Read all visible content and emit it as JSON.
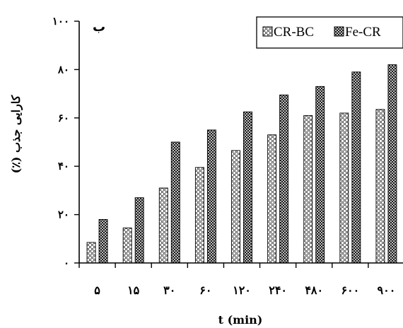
{
  "chart_data": {
    "type": "bar",
    "panel_label": "ب",
    "categories": [
      "۵",
      "۱۵",
      "۳۰",
      "۶۰",
      "۱۲۰",
      "۲۴۰",
      "۴۸۰",
      "۶۰۰",
      "۹۰۰"
    ],
    "series": [
      {
        "name": "CR-BC",
        "values": [
          8.5,
          14.5,
          31,
          39.5,
          46.5,
          53,
          61,
          62,
          63.5
        ],
        "pattern": "checker-light"
      },
      {
        "name": "Fe-CR",
        "values": [
          18,
          27,
          50,
          55,
          62.5,
          69.5,
          73,
          79,
          82
        ],
        "pattern": "checker-dark"
      }
    ],
    "xlabel": "t (min)",
    "ylabel": "کارایی جذب (٪)",
    "ylim": [
      0,
      100
    ],
    "yticks": [
      0,
      20,
      40,
      60,
      80,
      100
    ],
    "ytick_labels": [
      "۰",
      "۲۰",
      "۴۰",
      "۶۰",
      "۸۰",
      "۱۰۰"
    ],
    "grid": false,
    "legend_position": "top-right"
  }
}
